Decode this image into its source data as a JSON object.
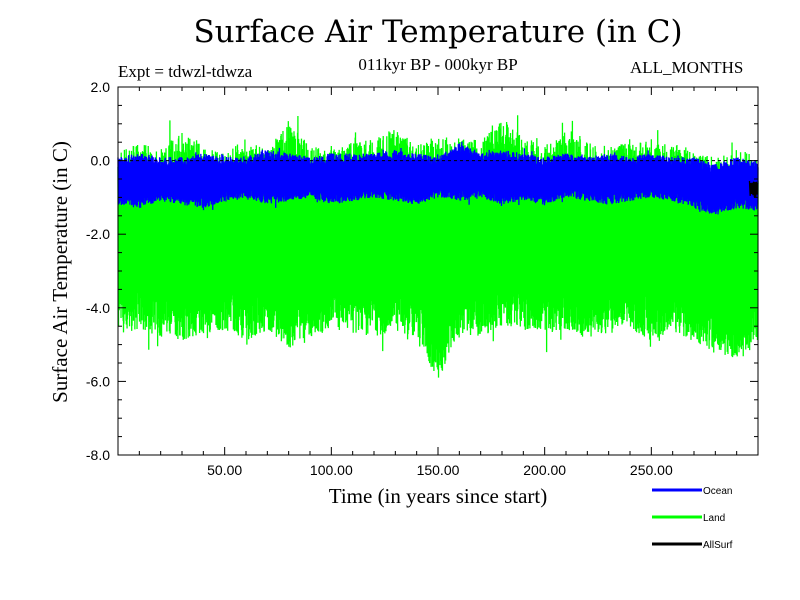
{
  "chart_data": {
    "type": "line",
    "title": "Surface Air Temperature (in C)",
    "experiment_label": "Expt = tdwzl-tdwza",
    "period_label": "011kyr BP - 000kyr BP",
    "months_label": "ALL_MONTHS",
    "xlabel": "Time (in years since start)",
    "ylabel": "Surface Air Temperature (in C)",
    "xlim": [
      0,
      300
    ],
    "ylim": [
      -8.0,
      2.0
    ],
    "x_ticks": [
      50,
      100,
      150,
      200,
      250
    ],
    "x_tick_labels": [
      "50.00",
      "100.00",
      "150.00",
      "200.00",
      "250.00"
    ],
    "y_ticks": [
      2.0,
      0.0,
      -2.0,
      -4.0,
      -6.0,
      -8.0
    ],
    "y_tick_labels": [
      "2.0",
      "0.0",
      "-2.0",
      "-4.0",
      "-6.0",
      "-8.0"
    ],
    "legend_position": "bottom-right, below plot",
    "reference_line_y": 0.0,
    "series": [
      {
        "name": "Land",
        "color": "#00ff00",
        "note_values": "monthly values oscillating between about -4.5 and -1.0",
        "upper_envelope": [
          0.2,
          0.5,
          0.3,
          0.9,
          0.4,
          0.2,
          0.6,
          0.3,
          1.1,
          0.4,
          0.3,
          0.5,
          0.6,
          0.9,
          0.4,
          0.7,
          0.6,
          0.5,
          1.2,
          0.6,
          0.4,
          0.8,
          0.5,
          0.4,
          0.6,
          0.5,
          0.5,
          0.3,
          0.1,
          0.3,
          0.2
        ],
        "lower_envelope": [
          -4.7,
          -4.6,
          -4.8,
          -4.9,
          -4.7,
          -4.6,
          -4.9,
          -4.6,
          -5.1,
          -4.8,
          -4.6,
          -4.7,
          -4.8,
          -4.6,
          -4.9,
          -6.0,
          -4.7,
          -4.8,
          -4.5,
          -4.6,
          -4.7,
          -4.6,
          -4.8,
          -4.7,
          -4.6,
          -4.9,
          -4.7,
          -4.9,
          -5.3,
          -5.4,
          -5.0
        ]
      },
      {
        "name": "Ocean",
        "color": "#0000ff",
        "note_values": "monthly values oscillating between about -1.1 and 0.0",
        "upper_envelope": [
          0.1,
          0.2,
          0.1,
          0.1,
          0.2,
          0.1,
          0.1,
          0.3,
          0.2,
          0.1,
          0.2,
          0.2,
          0.2,
          0.3,
          0.2,
          0.1,
          0.5,
          0.2,
          0.3,
          0.2,
          0.1,
          0.2,
          0.1,
          0.2,
          0.1,
          0.2,
          0.1,
          0.1,
          -0.1,
          0.1,
          0.0
        ],
        "lower_envelope": [
          -1.2,
          -1.3,
          -1.1,
          -1.2,
          -1.3,
          -1.1,
          -1.0,
          -1.2,
          -1.1,
          -1.0,
          -1.2,
          -1.1,
          -1.0,
          -1.1,
          -1.2,
          -1.0,
          -1.1,
          -1.0,
          -1.2,
          -1.1,
          -1.2,
          -1.0,
          -1.1,
          -1.2,
          -1.1,
          -1.0,
          -1.1,
          -1.3,
          -1.5,
          -1.3,
          -1.4
        ]
      },
      {
        "name": "AllSurf",
        "color": "#000000",
        "note_values": "mostly hidden beneath Ocean series; visible near x=300 around -0.7",
        "upper_envelope": [],
        "lower_envelope": []
      }
    ]
  }
}
